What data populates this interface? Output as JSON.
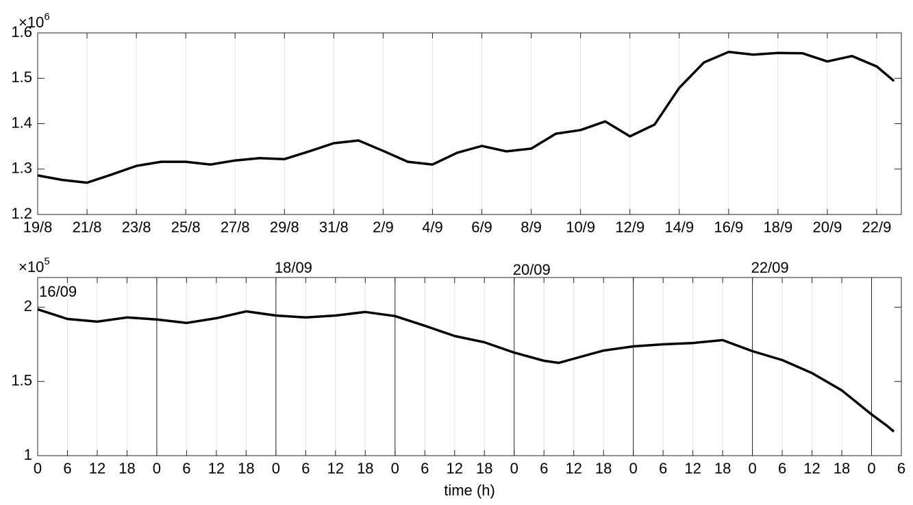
{
  "chart_data": [
    {
      "type": "line",
      "y_exponent": {
        "base": "×10",
        "power": "6"
      },
      "x": [
        0,
        1,
        2,
        3,
        4,
        5,
        6,
        7,
        8,
        9,
        10,
        11,
        12,
        13,
        14,
        15,
        16,
        17,
        18,
        19,
        20,
        21,
        22,
        23,
        24,
        25,
        26,
        27,
        28,
        29,
        30,
        31,
        32,
        33,
        34,
        34.7
      ],
      "values": [
        1.286,
        1.276,
        1.27,
        1.288,
        1.307,
        1.316,
        1.316,
        1.31,
        1.319,
        1.324,
        1.322,
        1.339,
        1.357,
        1.363,
        1.34,
        1.316,
        1.31,
        1.336,
        1.351,
        1.339,
        1.345,
        1.378,
        1.386,
        1.405,
        1.372,
        1.398,
        1.479,
        1.535,
        1.558,
        1.552,
        1.556,
        1.555,
        1.537,
        1.549,
        1.526,
        1.494
      ],
      "color": "#000000",
      "xlim": [
        0,
        35
      ],
      "xticks": [
        {
          "value": 0,
          "label": "19/8"
        },
        {
          "value": 2,
          "label": "21/8"
        },
        {
          "value": 4,
          "label": "23/8"
        },
        {
          "value": 6,
          "label": "25/8"
        },
        {
          "value": 8,
          "label": "27/8"
        },
        {
          "value": 10,
          "label": "29/8"
        },
        {
          "value": 12,
          "label": "31/8"
        },
        {
          "value": 14,
          "label": "2/9"
        },
        {
          "value": 16,
          "label": "4/9"
        },
        {
          "value": 18,
          "label": "6/9"
        },
        {
          "value": 20,
          "label": "8/9"
        },
        {
          "value": 22,
          "label": "10/9"
        },
        {
          "value": 24,
          "label": "12/9"
        },
        {
          "value": 26,
          "label": "14/9"
        },
        {
          "value": 28,
          "label": "16/9"
        },
        {
          "value": 30,
          "label": "18/9"
        },
        {
          "value": 32,
          "label": "20/9"
        },
        {
          "value": 34,
          "label": "22/9"
        }
      ],
      "ylim": [
        1.2,
        1.6
      ],
      "yticks": [
        1.2,
        1.3,
        1.4,
        1.5,
        1.6
      ],
      "grid": true
    },
    {
      "type": "line",
      "y_exponent": {
        "base": "×10",
        "power": "5"
      },
      "xlabel": "time (h)",
      "annotations": [
        {
          "text": "16/09",
          "x": 0
        },
        {
          "text": "18/09",
          "x": 48
        },
        {
          "text": "20/09",
          "x": 96
        },
        {
          "text": "22/09",
          "x": 144
        }
      ],
      "x": [
        0,
        6,
        12,
        18,
        24,
        30,
        36,
        42,
        48,
        54,
        60,
        66,
        72,
        78,
        84,
        90,
        96,
        102,
        105,
        108,
        114,
        120,
        126,
        132,
        138,
        144,
        150,
        156,
        162,
        168,
        171,
        172.5
      ],
      "values": [
        1.986,
        1.921,
        1.903,
        1.931,
        1.917,
        1.894,
        1.926,
        1.972,
        1.944,
        1.931,
        1.944,
        1.968,
        1.94,
        1.875,
        1.806,
        1.764,
        1.694,
        1.639,
        1.625,
        1.653,
        1.708,
        1.736,
        1.75,
        1.759,
        1.778,
        1.704,
        1.644,
        1.556,
        1.44,
        1.278,
        1.204,
        1.162
      ],
      "color": "#000000",
      "xlim": [
        0,
        174
      ],
      "xticks": [
        0,
        {
          "value": 6,
          "label": "6"
        },
        {
          "value": 12,
          "label": "12"
        },
        {
          "value": 18,
          "label": "18"
        },
        {
          "value": 24,
          "label": "0"
        },
        {
          "value": 30,
          "label": "6"
        },
        {
          "value": 36,
          "label": "12"
        },
        {
          "value": 42,
          "label": "18"
        },
        {
          "value": 48,
          "label": "0"
        },
        {
          "value": 54,
          "label": "6"
        },
        {
          "value": 60,
          "label": "12"
        },
        {
          "value": 66,
          "label": "18"
        },
        {
          "value": 72,
          "label": "0"
        },
        {
          "value": 78,
          "label": "6"
        },
        {
          "value": 84,
          "label": "12"
        },
        {
          "value": 90,
          "label": "18"
        },
        {
          "value": 96,
          "label": "0"
        },
        {
          "value": 102,
          "label": "6"
        },
        {
          "value": 108,
          "label": "12"
        },
        {
          "value": 114,
          "label": "18"
        },
        {
          "value": 120,
          "label": "0"
        },
        {
          "value": 126,
          "label": "6"
        },
        {
          "value": 132,
          "label": "12"
        },
        {
          "value": 138,
          "label": "18"
        },
        {
          "value": 144,
          "label": "0"
        },
        {
          "value": 150,
          "label": "6"
        },
        {
          "value": 156,
          "label": "12"
        },
        {
          "value": 162,
          "label": "18"
        },
        {
          "value": 168,
          "label": "0"
        },
        {
          "value": 174,
          "label": "6"
        }
      ],
      "ylim": [
        1,
        2.2
      ],
      "yticks": [
        1,
        1.5,
        2
      ],
      "grid": true
    }
  ]
}
